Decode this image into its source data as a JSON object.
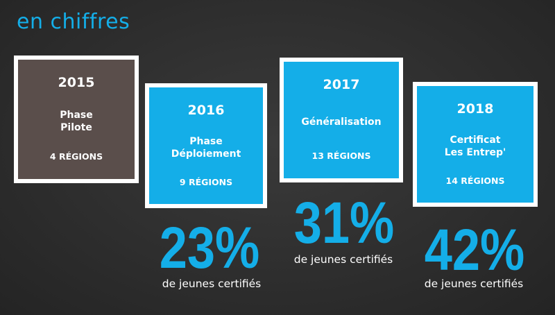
{
  "title": "en chiffres",
  "colors": {
    "accent": "#14aee8",
    "card_pilot": "#5a4e4b",
    "border": "#ffffff",
    "background": "#2e2e2e"
  },
  "cards": [
    {
      "year": "2015",
      "phase": "Phase\nPilote",
      "regions": "4 RÉGIONS"
    },
    {
      "year": "2016",
      "phase": "Phase\nDéploiement",
      "regions": "9 RÉGIONS"
    },
    {
      "year": "2017",
      "phase": "Généralisation",
      "regions": "13 RÉGIONS"
    },
    {
      "year": "2018",
      "phase": "Certificat\nLes Entrep'",
      "regions": "14 RÉGIONS"
    }
  ],
  "stats": [
    {
      "value": "23%",
      "caption": "de jeunes certifiés"
    },
    {
      "value": "31%",
      "caption": "de jeunes certifiés"
    },
    {
      "value": "42%",
      "caption": "de jeunes certifiés"
    }
  ]
}
